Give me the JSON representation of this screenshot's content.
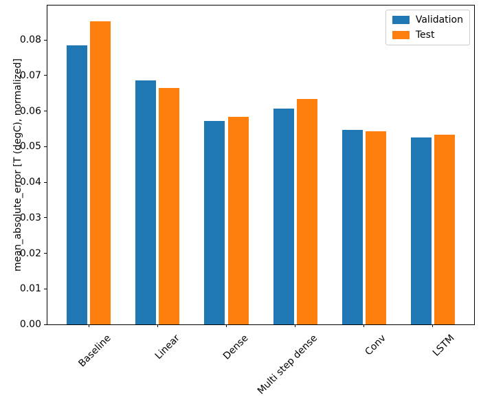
{
  "chart_data": {
    "type": "bar",
    "title": "",
    "xlabel": "",
    "ylabel": "mean_absolute_error [T (degC), normalized]",
    "categories": [
      "Baseline",
      "Linear",
      "Dense",
      "Multi step dense",
      "Conv",
      "LSTM"
    ],
    "series": [
      {
        "name": "Validation",
        "color": "#1f77b4",
        "values": [
          0.0785,
          0.0687,
          0.0572,
          0.0607,
          0.0547,
          0.0525
        ]
      },
      {
        "name": "Test",
        "color": "#ff7f0e",
        "values": [
          0.0853,
          0.0665,
          0.0583,
          0.0634,
          0.0543,
          0.0534
        ]
      }
    ],
    "yticks": [
      0.0,
      0.01,
      0.02,
      0.03,
      0.04,
      0.05,
      0.06,
      0.07,
      0.08
    ],
    "ytick_labels": [
      "0.00",
      "0.01",
      "0.02",
      "0.03",
      "0.04",
      "0.05",
      "0.06",
      "0.07",
      "0.08"
    ],
    "ylim": [
      0,
      0.0897
    ],
    "xlim": [
      -0.602,
      5.602
    ],
    "bar_width": 0.3,
    "bar_offset": 0.17,
    "xtick_rotation": 45,
    "grid": false,
    "legend": {
      "position": "upper right",
      "entries": [
        "Validation",
        "Test"
      ]
    }
  }
}
